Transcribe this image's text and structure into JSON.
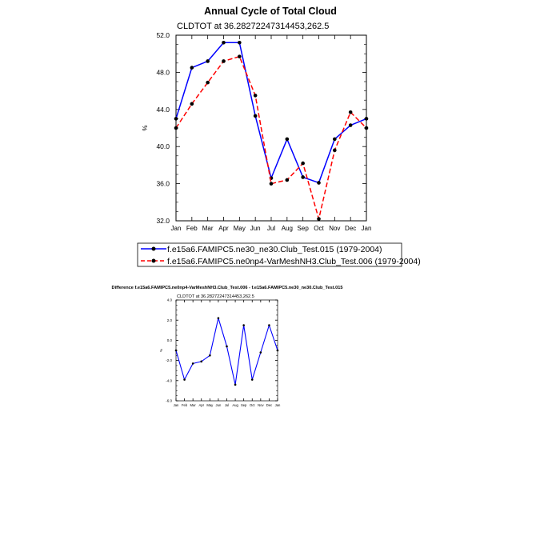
{
  "chart_data": [
    {
      "type": "line",
      "title": "Annual Cycle of Total Cloud",
      "subtitle": "CLDTOT at 36.28272247314453,262.5",
      "xlabel": "",
      "ylabel": "%",
      "categories": [
        "Jan",
        "Feb",
        "Mar",
        "Apr",
        "May",
        "Jun",
        "Jul",
        "Aug",
        "Sep",
        "Oct",
        "Nov",
        "Dec",
        "Jan"
      ],
      "ylim": [
        32.0,
        52.0
      ],
      "yticks": [
        "32.0",
        "36.0",
        "40.0",
        "44.0",
        "48.0",
        "52.0"
      ],
      "grid": false,
      "series": [
        {
          "name": "f.e15a6.FAMIPC5.ne30_ne30.Club_Test.015 (1979-2004)",
          "color": "#0000ff",
          "style": "solid",
          "values": [
            43.0,
            48.5,
            49.2,
            51.2,
            51.2,
            43.3,
            36.6,
            40.8,
            36.7,
            36.1,
            40.8,
            42.3,
            43.0
          ]
        },
        {
          "name": "f.e15a6.FAMIPC5.ne0np4-VarMeshNH3.Club_Test.006 (1979-2004)",
          "color": "#ff0000",
          "style": "dashed",
          "values": [
            42.0,
            44.6,
            46.9,
            49.2,
            49.7,
            45.5,
            36.0,
            36.4,
            38.2,
            32.2,
            39.6,
            43.7,
            42.0
          ]
        }
      ]
    },
    {
      "type": "line",
      "title": "Difference f.e15a6.FAMIPC5.ne0np4-VarMeshNH3.Club_Test.006 - f.e15a6.FAMIPC5.ne30_ne30.Club_Test.015",
      "subtitle": "CLDTOT at 36.28272247314453,262.5",
      "xlabel": "",
      "ylabel": "%",
      "categories": [
        "Jan",
        "Feb",
        "Mar",
        "Apr",
        "May",
        "Jun",
        "Jul",
        "Aug",
        "Sep",
        "Oct",
        "Nov",
        "Dec",
        "Jan"
      ],
      "ylim": [
        -6.0,
        4.0
      ],
      "yticks": [
        "-6.0",
        "-4.0",
        "-2.0",
        "0.0",
        "2.0",
        "4.0"
      ],
      "grid": false,
      "series": [
        {
          "name": "Difference",
          "color": "#0000ff",
          "style": "solid",
          "values": [
            -1.0,
            -3.9,
            -2.3,
            -2.1,
            -1.5,
            2.2,
            -0.6,
            -4.4,
            1.5,
            -3.9,
            -1.2,
            1.5,
            -1.0
          ]
        }
      ]
    }
  ]
}
